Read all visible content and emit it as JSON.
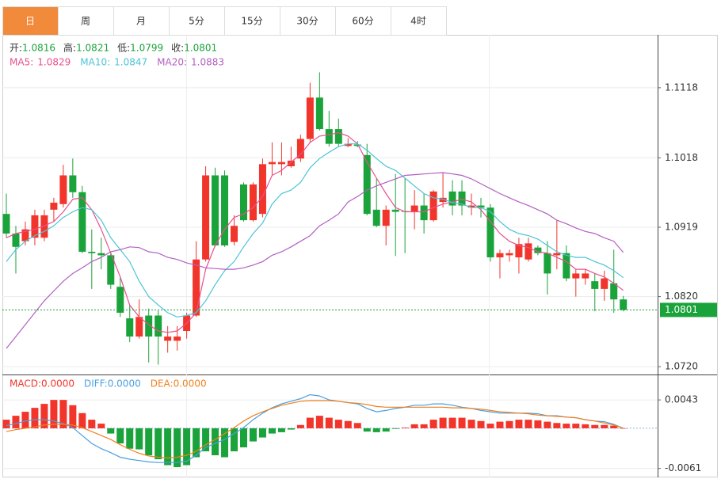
{
  "tabs": [
    "日",
    "周",
    "月",
    "5分",
    "15分",
    "30分",
    "60分",
    "4时"
  ],
  "active_tab": 0,
  "chart_data": [
    {
      "type": "candlestick",
      "info": [
        {
          "label": "开:",
          "value": 1.0816
        },
        {
          "label": "高:",
          "value": 1.0821
        },
        {
          "label": "低:",
          "value": 1.0799
        },
        {
          "label": "收:",
          "value": 1.0801
        }
      ],
      "info_color": "#1aa33a",
      "up_color": "#f2352b",
      "down_color": "#1aa33a",
      "ylim": [
        1.071,
        1.1189
      ],
      "yticks": [
        1.1118,
        1.1018,
        1.0919,
        {
          "value": 1.082,
          "label": "1.0820"
        },
        {
          "value": 1.072,
          "label": "1.0720"
        }
      ],
      "grid": true,
      "last_price": 1.0801,
      "last_price_color": "#1aa33a",
      "open": [
        1.0938,
        1.091,
        1.0899,
        1.0904,
        1.0904,
        1.0944,
        1.0952,
        1.0993,
        1.0969,
        1.0884,
        1.0882,
        1.0879,
        1.0834,
        1.0789,
        1.0763,
        1.0793,
        1.0793,
        1.0757,
        1.0757,
        1.0771,
        1.0793,
        1.0873,
        1.0993,
        1.0993,
        1.0898,
        1.098,
        1.0929,
        1.0938,
        1.1009,
        1.1009,
        1.1006,
        1.1017,
        1.1045,
        1.1104,
        1.1059,
        1.1059,
        1.1035,
        1.1037,
        1.1022,
        1.0944,
        1.0921,
        1.0944,
        1.0942,
        1.0941,
        1.095,
        1.0929,
        1.0955,
        1.097,
        1.097,
        1.0947,
        1.095,
        1.0947,
        1.0876,
        1.0879,
        1.0876,
        1.0873,
        1.089,
        1.0882,
        1.0879,
        1.0882,
        1.0846,
        1.0846,
        1.0842,
        1.0831,
        1.0839,
        1.0816
      ],
      "high": [
        1.0967,
        1.0921,
        1.0927,
        1.0944,
        1.0944,
        1.0961,
        1.1008,
        1.1017,
        1.0978,
        1.0916,
        1.0904,
        1.0882,
        1.0848,
        1.0808,
        1.0816,
        1.0803,
        1.08,
        1.0778,
        1.0778,
        1.0797,
        1.0899,
        1.1006,
        1.1004,
        1.1,
        1.0936,
        1.0983,
        1.0983,
        1.1017,
        1.104,
        1.104,
        1.1034,
        1.1051,
        1.1125,
        1.114,
        1.1085,
        1.1074,
        1.1046,
        1.1042,
        1.1038,
        1.0989,
        1.095,
        1.0995,
        1.0989,
        1.0972,
        1.0967,
        1.0972,
        1.0997,
        1.0986,
        1.0986,
        1.0967,
        1.0961,
        1.0952,
        1.0887,
        1.0887,
        1.0904,
        1.0904,
        1.0893,
        1.0899,
        1.0929,
        1.0893,
        1.0859,
        1.0859,
        1.0853,
        1.0857,
        1.0887,
        1.0821
      ],
      "low": [
        1.0904,
        1.0853,
        1.0893,
        1.0893,
        1.0899,
        1.0927,
        1.0947,
        1.0961,
        1.0882,
        1.0831,
        1.0859,
        1.0831,
        1.0791,
        1.0755,
        1.076,
        1.0726,
        1.0723,
        1.074,
        1.0743,
        1.076,
        1.0791,
        1.087,
        1.0891,
        1.0891,
        1.0893,
        1.0927,
        1.0927,
        1.0933,
        1.0993,
        1.0993,
        1.1004,
        1.1012,
        1.104,
        1.1057,
        1.1034,
        1.1034,
        1.1033,
        1.1033,
        1.0936,
        1.0919,
        1.0893,
        1.0878,
        1.0882,
        1.0916,
        1.091,
        1.0927,
        1.0947,
        1.0936,
        1.0936,
        1.0936,
        1.0933,
        1.087,
        1.0846,
        1.087,
        1.0853,
        1.087,
        1.0879,
        1.0823,
        1.0859,
        1.0842,
        1.082,
        1.0837,
        1.0799,
        1.0814,
        1.0797,
        1.0799
      ],
      "close": [
        1.091,
        1.0891,
        1.0916,
        1.0936,
        1.0936,
        1.0954,
        1.0993,
        1.0969,
        1.0884,
        1.0882,
        1.0879,
        1.0837,
        1.0797,
        1.0763,
        1.0791,
        1.0763,
        1.0763,
        1.0763,
        1.0763,
        1.0793,
        1.0873,
        1.0993,
        1.0893,
        1.0893,
        1.0921,
        1.0929,
        1.098,
        1.1009,
        1.1012,
        1.1012,
        1.1014,
        1.1045,
        1.1104,
        1.1059,
        1.1038,
        1.1038,
        1.1038,
        1.1035,
        1.0938,
        1.0921,
        1.0944,
        1.0941,
        1.0941,
        1.095,
        1.0929,
        1.097,
        1.0961,
        1.095,
        1.095,
        1.095,
        1.0947,
        1.0876,
        1.0882,
        1.0882,
        1.0895,
        1.0896,
        1.0882,
        1.0853,
        1.0882,
        1.0846,
        1.0853,
        1.0853,
        1.0831,
        1.0846,
        1.0816,
        1.0801
      ],
      "series": [
        {
          "name": "MA5:",
          "color": "#e8508e",
          "legend_value": 1.0829,
          "values": [
            1.0904,
            1.091,
            1.0913,
            1.0916,
            1.0921,
            1.0927,
            1.0941,
            1.0959,
            1.0961,
            1.0944,
            1.0916,
            1.0882,
            1.0848,
            1.0808,
            1.0791,
            1.078,
            1.0771,
            1.0769,
            1.0771,
            1.0782,
            1.0797,
            1.0859,
            1.0893,
            1.0916,
            1.0933,
            1.0938,
            1.0947,
            1.0963,
            1.0993,
            1.1,
            1.1012,
            1.1023,
            1.104,
            1.1049,
            1.1051,
            1.1054,
            1.1049,
            1.1038,
            1.1012,
            1.0989,
            1.0967,
            1.0947,
            1.0941,
            1.0941,
            1.0941,
            1.0947,
            1.0952,
            1.0955,
            1.0959,
            1.0955,
            1.0944,
            1.0927,
            1.091,
            1.0899,
            1.0893,
            1.089,
            1.0884,
            1.0882,
            1.0876,
            1.087,
            1.0859,
            1.0859,
            1.0853,
            1.0848,
            1.0839,
            1.0829
          ]
        },
        {
          "name": "MA10:",
          "color": "#4cc3d6",
          "legend_value": 1.0847,
          "values": [
            1.087,
            1.0887,
            1.0899,
            1.0907,
            1.0913,
            1.0921,
            1.0933,
            1.0941,
            1.0947,
            1.0944,
            1.0929,
            1.0904,
            1.0887,
            1.087,
            1.0842,
            1.082,
            1.0808,
            1.0797,
            1.0791,
            1.0793,
            1.0797,
            1.0814,
            1.0837,
            1.0857,
            1.087,
            1.0891,
            1.091,
            1.0925,
            1.0952,
            1.0967,
            1.0972,
            1.0983,
            1.1004,
            1.1017,
            1.1026,
            1.1034,
            1.1038,
            1.1038,
            1.1029,
            1.1017,
            1.1006,
            1.1,
            1.0989,
            1.0978,
            1.0967,
            1.0961,
            1.0959,
            1.0954,
            1.0952,
            1.0947,
            1.0947,
            1.0941,
            1.0927,
            1.0916,
            1.091,
            1.0907,
            1.0902,
            1.0893,
            1.0884,
            1.0879,
            1.0876,
            1.0876,
            1.087,
            1.0865,
            1.0857,
            1.0847
          ]
        },
        {
          "name": "MA20:",
          "color": "#b35fc2",
          "legend_value": 1.0883,
          "values": [
            1.0746,
            1.0763,
            1.078,
            1.0797,
            1.0814,
            1.0828,
            1.0842,
            1.0853,
            1.0861,
            1.087,
            1.0876,
            1.0884,
            1.0887,
            1.0891,
            1.089,
            1.0884,
            1.0882,
            1.0876,
            1.0873,
            1.0868,
            1.0865,
            1.0861,
            1.086,
            1.0859,
            1.0859,
            1.0861,
            1.0865,
            1.087,
            1.0879,
            1.0884,
            1.0891,
            1.0899,
            1.0907,
            1.0921,
            1.0929,
            1.0938,
            1.0955,
            1.0963,
            1.0972,
            1.0978,
            1.0983,
            1.0988,
            1.0993,
            1.0994,
            1.0995,
            1.0996,
            1.0997,
            1.0995,
            1.0993,
            1.0988,
            1.0981,
            1.0974,
            1.0967,
            1.0961,
            1.0955,
            1.095,
            1.0944,
            1.0938,
            1.0929,
            1.0924,
            1.0918,
            1.0913,
            1.091,
            1.0904,
            1.0899,
            1.0883
          ]
        }
      ]
    },
    {
      "type": "macd",
      "ylim": [
        -0.0071,
        0.0078
      ],
      "yticks": [
        0.0043,
        -0.0061
      ],
      "grid": true,
      "up_color": "#f2352b",
      "down_color": "#1aa33a",
      "histogram": {
        "name": "MACD:",
        "color": "#f2352b",
        "legend_value": {
          "value": 0,
          "label": "0.0000"
        },
        "values": [
          0.0013,
          0.0019,
          0.0025,
          0.0031,
          0.0037,
          0.0043,
          0.0043,
          0.0035,
          0.0023,
          0.0013,
          0.0007,
          -0.0008,
          -0.0023,
          -0.0031,
          -0.0032,
          -0.0041,
          -0.0047,
          -0.0056,
          -0.0059,
          -0.0056,
          -0.0044,
          -0.0035,
          -0.0041,
          -0.0044,
          -0.0035,
          -0.0029,
          -0.002,
          -0.0014,
          -0.0008,
          -0.0006,
          -0.0002,
          0.0005,
          0.0016,
          0.0019,
          0.0016,
          0.0013,
          0.0011,
          0.0008,
          -0.0005,
          -0.0006,
          -0.0005,
          -0.0001,
          0.0001,
          0.0006,
          0.0006,
          0.0013,
          0.0016,
          0.0016,
          0.0016,
          0.0013,
          0.0011,
          0.0007,
          0.001,
          0.0011,
          0.0013,
          0.0013,
          0.0012,
          0.001,
          0.0008,
          0.0007,
          0.0007,
          0.0006,
          0.0005,
          0.0005,
          0.0004,
          0
        ]
      },
      "series": [
        {
          "name": "DIFF:",
          "color": "#4a9fe0",
          "legend_value": {
            "value": 0,
            "label": "0.0000"
          },
          "values": [
            0.0004,
            0.0007,
            0.0011,
            0.0013,
            0.0013,
            0.0011,
            0.0007,
            0.0001,
            -0.0011,
            -0.0023,
            -0.0031,
            -0.0037,
            -0.0044,
            -0.0047,
            -0.0049,
            -0.0051,
            -0.0052,
            -0.0052,
            -0.0052,
            -0.005,
            -0.0041,
            -0.0029,
            -0.0023,
            -0.0017,
            -0.0008,
            0.0001,
            0.0013,
            0.0023,
            0.0031,
            0.0037,
            0.0041,
            0.0045,
            0.0051,
            0.0049,
            0.0043,
            0.0041,
            0.0039,
            0.0037,
            0.003,
            0.0025,
            0.0027,
            0.003,
            0.0032,
            0.0035,
            0.0035,
            0.0037,
            0.0037,
            0.0035,
            0.0032,
            0.003,
            0.0027,
            0.0025,
            0.0023,
            0.0023,
            0.0023,
            0.0023,
            0.0022,
            0.0019,
            0.0019,
            0.0017,
            0.0016,
            0.0013,
            0.0011,
            0.001,
            0.0006,
            0
          ]
        },
        {
          "name": "DEA:",
          "color": "#f0801e",
          "legend_value": {
            "value": 0,
            "label": "0.0000"
          },
          "values": [
            -0.0005,
            -0.0002,
            0,
            0.0002,
            0.0005,
            0.0006,
            0.0006,
            0.0005,
            0.0001,
            -0.0005,
            -0.0011,
            -0.0017,
            -0.0025,
            -0.0032,
            -0.0038,
            -0.0042,
            -0.0044,
            -0.0045,
            -0.0044,
            -0.0041,
            -0.0035,
            -0.0025,
            -0.0017,
            -0.0008,
            0.0001,
            0.0011,
            0.0019,
            0.0025,
            0.003,
            0.0035,
            0.0038,
            0.0041,
            0.0042,
            0.0042,
            0.0042,
            0.0041,
            0.0039,
            0.0038,
            0.0036,
            0.0033,
            0.0032,
            0.0032,
            0.0032,
            0.0032,
            0.0032,
            0.0032,
            0.0032,
            0.0031,
            0.0031,
            0.003,
            0.0029,
            0.0027,
            0.0025,
            0.0024,
            0.0023,
            0.0022,
            0.002,
            0.0019,
            0.0018,
            0.0017,
            0.0016,
            0.0013,
            0.0011,
            0.0008,
            0.0005,
            0
          ]
        }
      ]
    }
  ]
}
